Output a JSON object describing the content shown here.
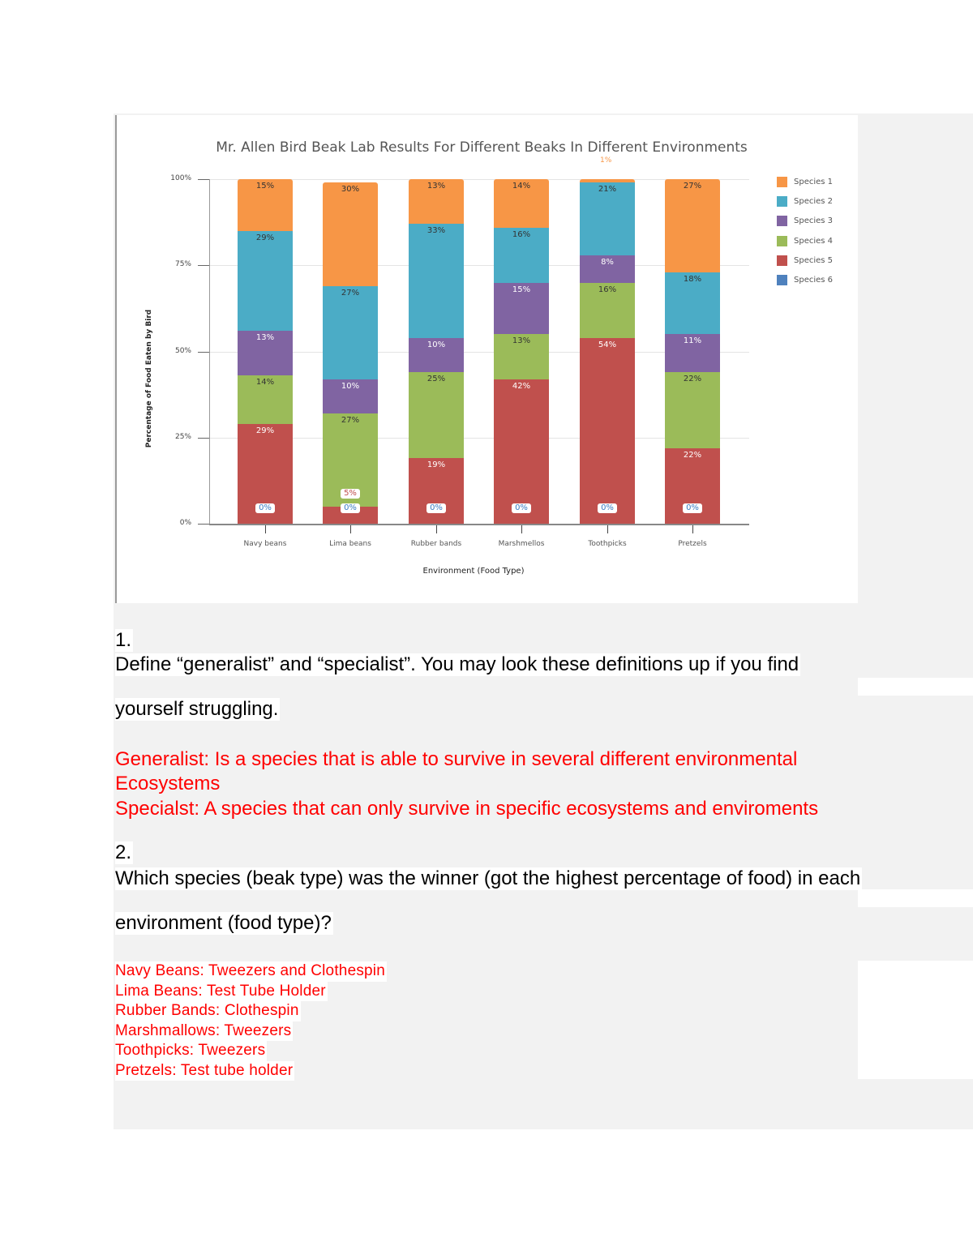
{
  "chart_data": {
    "type": "bar",
    "stacked": true,
    "normalized": true,
    "title": "Mr. Allen Bird Beak Lab Results For Different Beaks In Different Environments",
    "xlabel": "Environment (Food Type)",
    "ylabel": "Percentage of Food Eaten by Bird",
    "ylim": [
      0,
      100
    ],
    "yticks": [
      "0%",
      "25%",
      "50%",
      "75%",
      "100%"
    ],
    "categories": [
      "Navy beans",
      "Lima beans",
      "Rubber bands",
      "Marshmellos",
      "Toothpicks",
      "Pretzels"
    ],
    "legend_position": "right",
    "grid": true,
    "series": [
      {
        "name": "Species 1",
        "color": "#f79646",
        "values": [
          15,
          30,
          13,
          14,
          1,
          27
        ]
      },
      {
        "name": "Species 2",
        "color": "#4bacc6",
        "values": [
          29,
          27,
          33,
          16,
          21,
          18
        ]
      },
      {
        "name": "Species 3",
        "color": "#8064a2",
        "values": [
          13,
          10,
          10,
          15,
          8,
          11
        ]
      },
      {
        "name": "Species 4",
        "color": "#9bbb59",
        "values": [
          14,
          27,
          25,
          13,
          16,
          22
        ]
      },
      {
        "name": "Species 5",
        "color": "#c0504d",
        "values": [
          29,
          5,
          19,
          42,
          54,
          22
        ]
      },
      {
        "name": "Species 6",
        "color": "#4f81bd",
        "values": [
          0,
          0,
          0,
          0,
          0,
          0
        ]
      }
    ]
  },
  "chart_labels": {
    "title": "Mr. Allen Bird Beak Lab Results For Different Beaks In Different Environments",
    "xlabel": "Environment (Food Type)",
    "ylabel": "Percentage of Food Eaten by Bird",
    "yticks": [
      "100%",
      "75%",
      "50%",
      "25%",
      "0%"
    ],
    "categories": [
      "Navy beans",
      "Lima beans",
      "Rubber bands",
      "Marshmellos",
      "Toothpicks",
      "Pretzels"
    ],
    "legend": [
      "Species 1",
      "Species 2",
      "Species 3",
      "Species 4",
      "Species 5",
      "Species 6"
    ],
    "over_label": "1%",
    "zero_label": "0%",
    "five_label": "5%",
    "bars": [
      [
        "15%",
        "29%",
        "13%",
        "14%",
        "29%"
      ],
      [
        "30%",
        "27%",
        "10%",
        "27%",
        ""
      ],
      [
        "13%",
        "33%",
        "10%",
        "25%",
        "19%"
      ],
      [
        "14%",
        "16%",
        "15%",
        "13%",
        "42%"
      ],
      [
        "",
        "21%",
        "8%",
        "16%",
        "54%"
      ],
      [
        "27%",
        "18%",
        "11%",
        "22%",
        "22%"
      ]
    ]
  },
  "document": {
    "q1": {
      "number": "1.",
      "prompt_line1": "Define “generalist” and “specialist”. You may look these definitions up if you find",
      "prompt_line2": "yourself struggling.",
      "answer_generalist_line1": "Generalist: Is a species that is able to survive in several different environmental",
      "answer_generalist_line2": "Ecosystems",
      "answer_specialist": "Specialst: A species that can only survive in specific ecosystems and enviroments"
    },
    "q2": {
      "number": "2.",
      "prompt_line1": "Which species (beak type) was the winner (got the highest percentage of food) in each",
      "prompt_line2": "environment (food type)?",
      "answers": [
        "Navy Beans: Tweezers and Clothespin",
        "Lima Beans: Test Tube Holder",
        "Rubber Bands: Clothespin",
        "Marshmallows: Tweezers",
        "Toothpicks: Tweezers",
        "Pretzels: Test tube holder"
      ]
    }
  }
}
